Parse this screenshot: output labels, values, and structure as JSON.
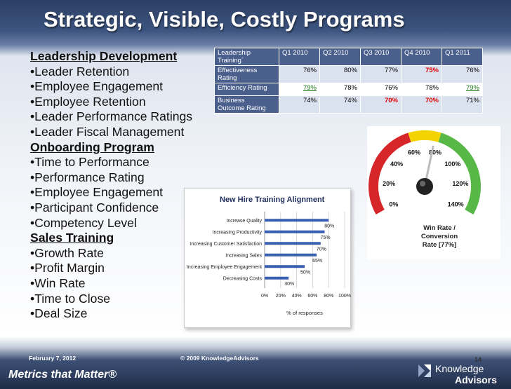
{
  "slide": {
    "title": "Strategic, Visible, Costly Programs",
    "colors": {
      "header_blue": "#2d3f64",
      "table_blue": "#4b5f8d",
      "alt_row": "#dbe2ef",
      "bad_red": "#e00000",
      "good_green": "#1f7a1f",
      "bar_blue": "#3b5fb0"
    }
  },
  "list": {
    "items": [
      {
        "text": "Leadership Development",
        "heading": true
      },
      {
        "text": "•Leader Retention",
        "heading": false
      },
      {
        "text": "•Employee Engagement",
        "heading": false
      },
      {
        "text": "•Employee Retention",
        "heading": false
      },
      {
        "text": "•Leader Performance Ratings",
        "heading": false
      },
      {
        "text": "•Leader Fiscal Management",
        "heading": false
      },
      {
        "text": "Onboarding Program",
        "heading": true
      },
      {
        "text": "•Time to Performance",
        "heading": false
      },
      {
        "text": "•Performance Rating",
        "heading": false
      },
      {
        "text": "•Employee Engagement",
        "heading": false
      },
      {
        "text": "•Participant Confidence",
        "heading": false
      },
      {
        "text": "•Competency Level",
        "heading": false
      },
      {
        "text": "Sales Training",
        "heading": true
      },
      {
        "text": "•Growth Rate",
        "heading": false
      },
      {
        "text": "•Profit Margin",
        "heading": false
      },
      {
        "text": "•Win Rate",
        "heading": false
      },
      {
        "text": "•Time to Close",
        "heading": false
      },
      {
        "text": "•Deal Size",
        "heading": false
      }
    ]
  },
  "table": {
    "corner_l1": "Leadership",
    "corner_l2": "Training`",
    "headers": [
      "Q1 2010",
      "Q2 2010",
      "Q3 2010",
      "Q4 2010",
      "Q1 2011"
    ],
    "rows": [
      {
        "l1": "Effectiveness",
        "l2": "Rating",
        "cells": [
          {
            "v": "76%",
            "s": ""
          },
          {
            "v": "80%",
            "s": ""
          },
          {
            "v": "77%",
            "s": ""
          },
          {
            "v": "75%",
            "s": "bad"
          },
          {
            "v": "76%",
            "s": ""
          }
        ]
      },
      {
        "l1": "Efficiency Rating",
        "l2": "",
        "cells": [
          {
            "v": "79%",
            "s": "good"
          },
          {
            "v": "78%",
            "s": ""
          },
          {
            "v": "76%",
            "s": ""
          },
          {
            "v": "78%",
            "s": ""
          },
          {
            "v": "79%",
            "s": "good"
          }
        ]
      },
      {
        "l1": "Business",
        "l2": "Outcome Rating",
        "cells": [
          {
            "v": "74%",
            "s": ""
          },
          {
            "v": "74%",
            "s": ""
          },
          {
            "v": "70%",
            "s": "bad"
          },
          {
            "v": "70%",
            "s": "bad"
          },
          {
            "v": "71%",
            "s": ""
          }
        ]
      }
    ]
  },
  "chart_data": [
    {
      "type": "bar",
      "orientation": "horizontal",
      "title": "New Hire Training Alignment",
      "xlabel": "% of responses",
      "ylabel": "",
      "xlim": [
        0,
        100
      ],
      "x_ticks": [
        "0%",
        "20%",
        "40%",
        "60%",
        "80%",
        "100%"
      ],
      "categories": [
        "Increase Quality",
        "Increasing Productivity",
        "Increasing Customer Satisfaction",
        "Increasing Sales",
        "Increasing Employee Engagement",
        "Decreasing Costs"
      ],
      "values": [
        80,
        75,
        70,
        65,
        50,
        30
      ],
      "value_labels": [
        "80%",
        "75%",
        "70%",
        "65%",
        "50%",
        "30%"
      ],
      "grid": true
    },
    {
      "type": "gauge",
      "title": "Win Rate / Conversion Rate [77%]",
      "title_l1": "Win Rate /",
      "title_l2": "Conversion",
      "title_l3": "Rate [77%]",
      "value": 77,
      "range": [
        0,
        140
      ],
      "tick_labels": [
        "0%",
        "20%",
        "40%",
        "60%",
        "80%",
        "100%",
        "120%",
        "140%"
      ],
      "bands": [
        {
          "from": 0,
          "to": 60,
          "color": "#d7262a"
        },
        {
          "from": 60,
          "to": 80,
          "color": "#f4d400"
        },
        {
          "from": 80,
          "to": 140,
          "color": "#57b847"
        }
      ]
    }
  ],
  "footer": {
    "date": "February 7, 2012",
    "copyright": "© 2009 KnowledgeAdvisors",
    "page": "14",
    "tagline": "Metrics that Matter®",
    "logo_line1": "Knowledge",
    "logo_line2": "Advisors"
  }
}
